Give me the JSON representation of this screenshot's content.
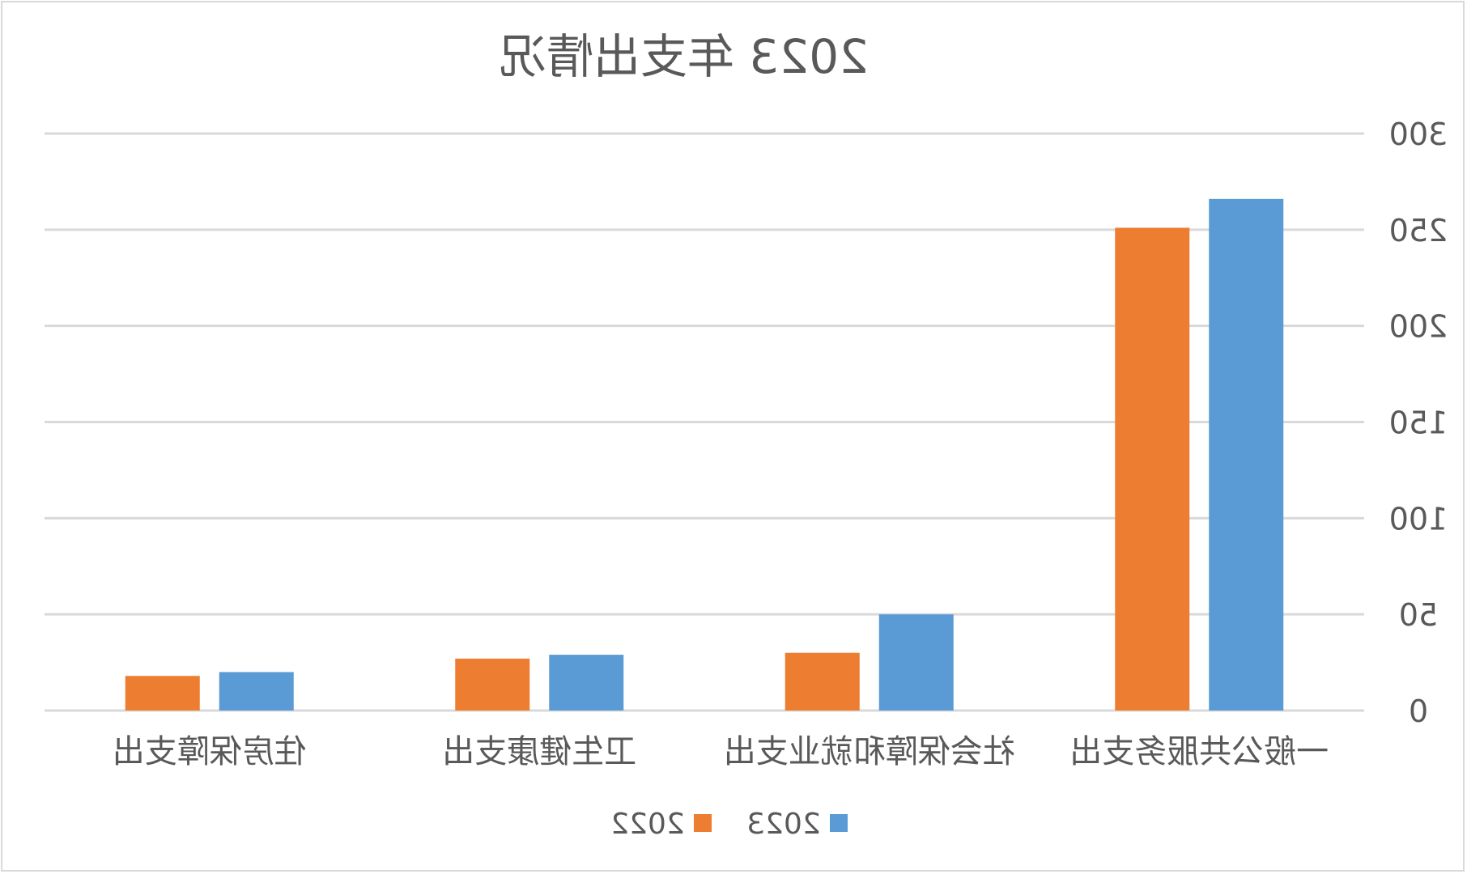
{
  "chart_data": {
    "type": "bar",
    "title": "2023 年支出情况",
    "categories": [
      "一般公共服务支出",
      "社会保障和就业支出",
      "卫生健康支出",
      "住房保障支出"
    ],
    "series": [
      {
        "name": "2023",
        "values": [
          266,
          50,
          29,
          20
        ]
      },
      {
        "name": "2022",
        "values": [
          251,
          30,
          27,
          18
        ]
      }
    ],
    "ylim": [
      0,
      300
    ],
    "yticks": [
      0,
      50,
      100,
      150,
      200,
      250,
      300
    ],
    "grid": true,
    "legend_position": "bottom",
    "xlabel": "",
    "ylabel": "",
    "mirrored": true,
    "colors": {
      "2023": "#5B9BD5",
      "2022": "#ED7D31",
      "grid": "#D9D9D9",
      "text": "#595959",
      "border": "#D9D9D9"
    }
  }
}
